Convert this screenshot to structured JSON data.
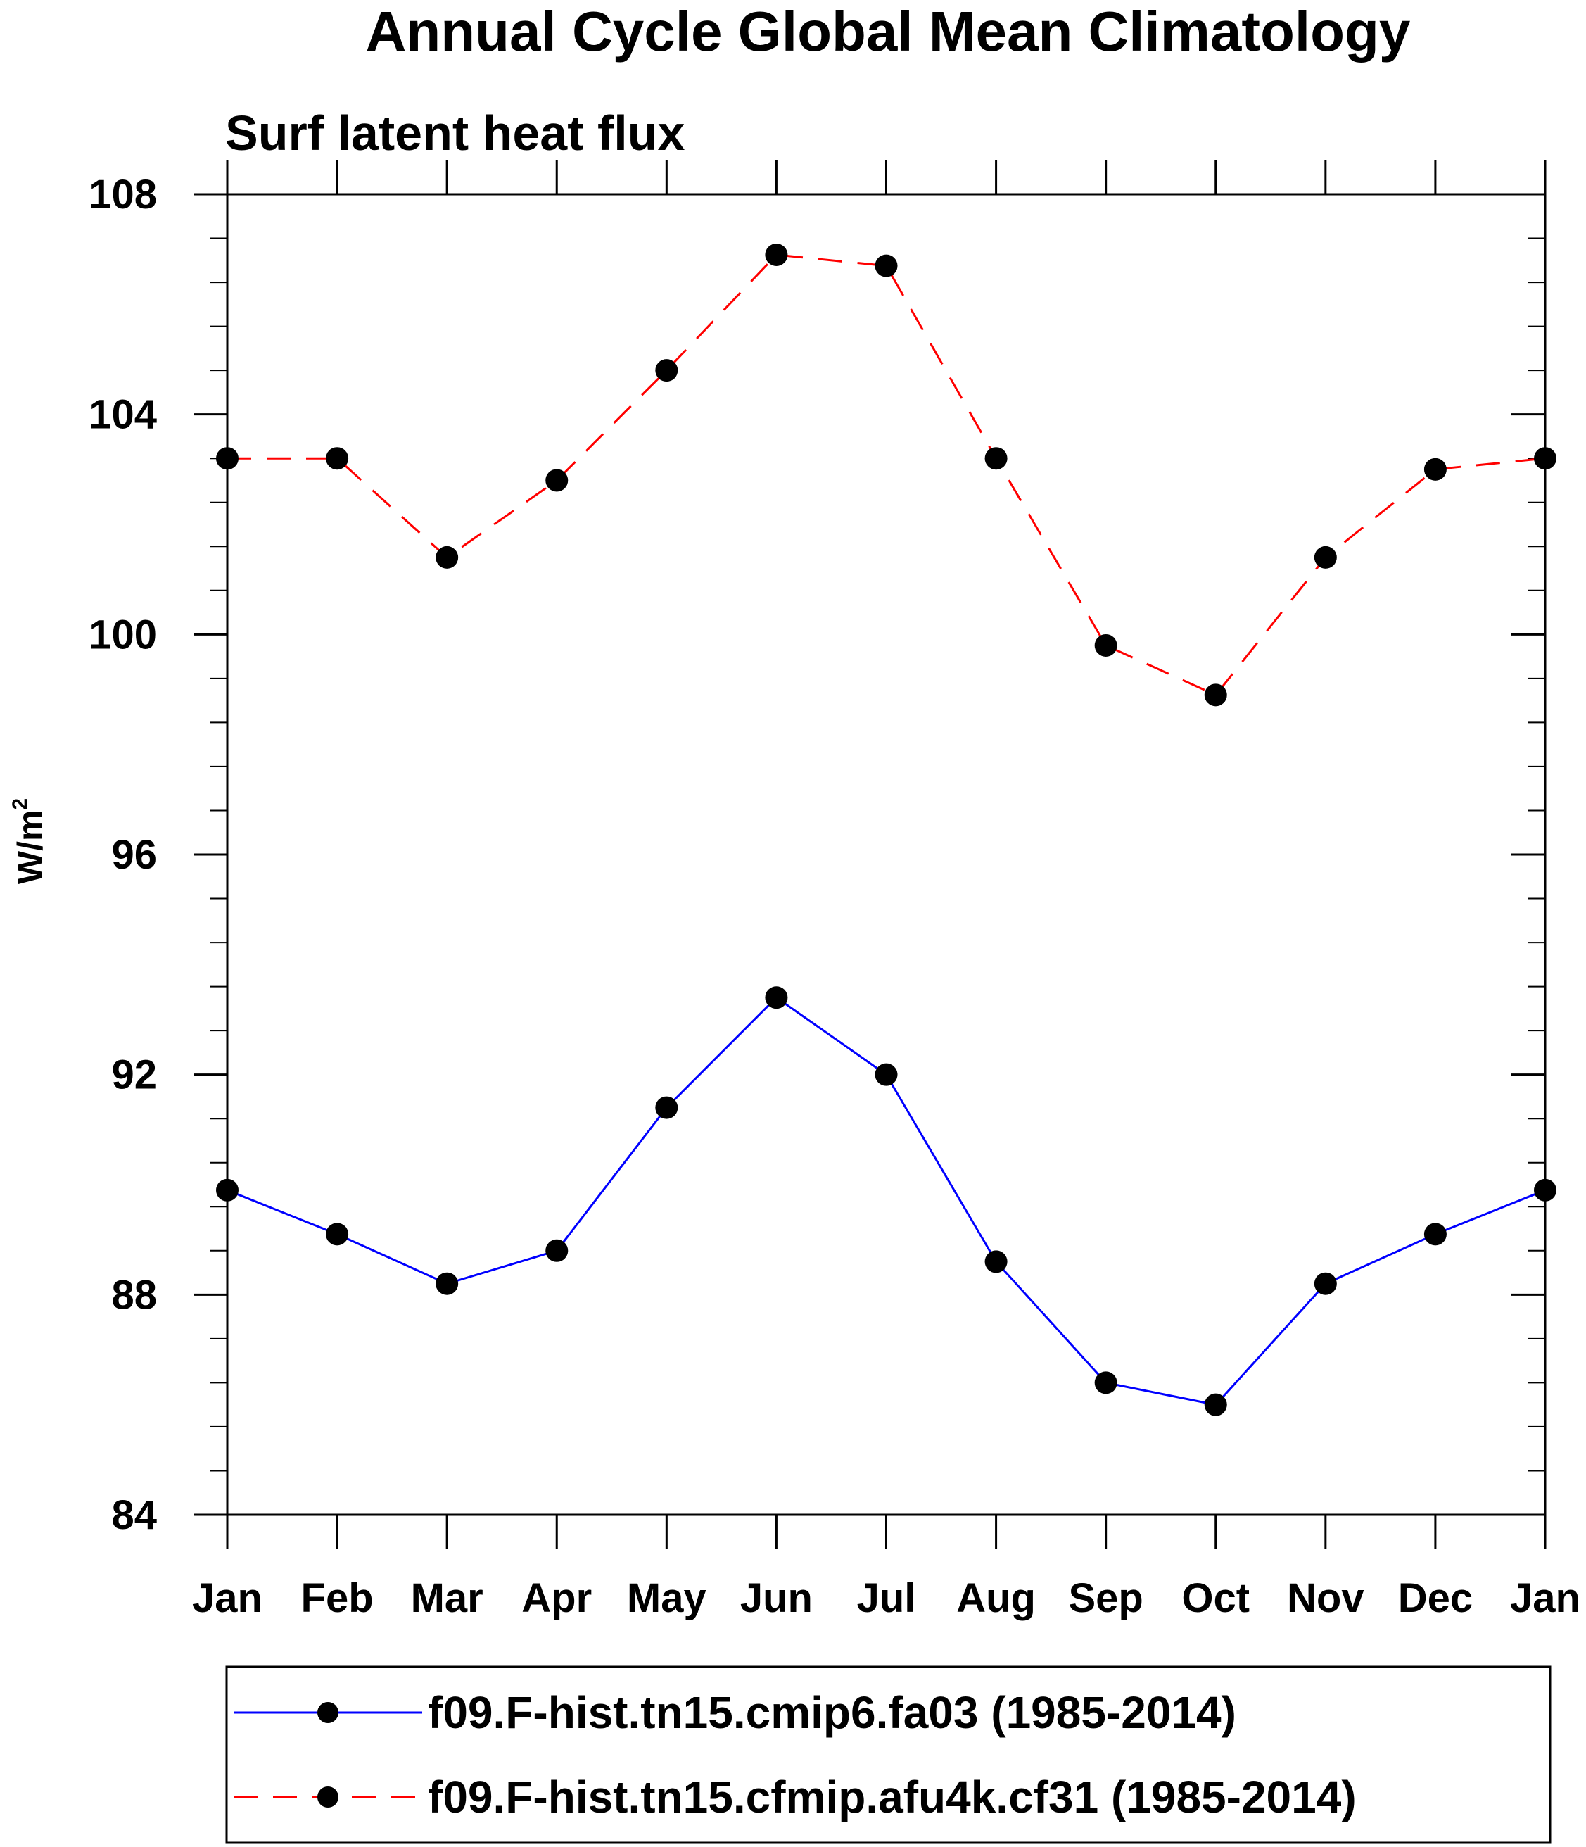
{
  "chart_data": {
    "type": "line",
    "title": "Annual Cycle Global Mean Climatology",
    "subtitle": "Surf latent heat flux",
    "ylabel": "W/m",
    "ylabel_sup": "2",
    "xlabel": "",
    "ylim": [
      84,
      108
    ],
    "yticks": [
      "84",
      "88",
      "92",
      "96",
      "100",
      "104",
      "108"
    ],
    "categories": [
      "Jan",
      "Feb",
      "Mar",
      "Apr",
      "May",
      "Jun",
      "Jul",
      "Aug",
      "Sep",
      "Oct",
      "Nov",
      "Dec",
      "Jan"
    ],
    "legend_position": "bottom",
    "grid": false,
    "series": [
      {
        "name": "f09.F-hist.tn15.cmip6.fa03 (1985-2014)",
        "color": "#0000ff",
        "style": "solid",
        "values": [
          89.9,
          89.1,
          88.2,
          88.8,
          91.4,
          93.4,
          92.0,
          88.6,
          86.4,
          86.0,
          88.2,
          89.1,
          89.9
        ]
      },
      {
        "name": "f09.F-hist.tn15.cfmip.afu4k.cf31 (1985-2014)",
        "color": "#ff0000",
        "style": "dashed",
        "values": [
          103.2,
          103.2,
          101.4,
          102.8,
          104.8,
          106.9,
          106.7,
          103.2,
          99.8,
          98.9,
          101.4,
          103.0,
          103.2
        ]
      }
    ]
  }
}
